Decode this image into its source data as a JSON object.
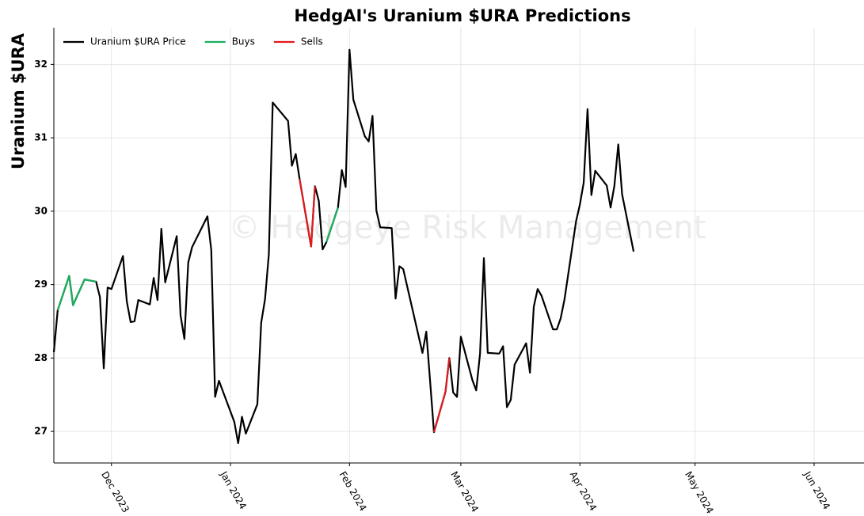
{
  "chart_data": {
    "type": "line",
    "title": "HedgAI's Uranium $URA Predictions",
    "ylabel": "Uranium $URA",
    "watermark": "© Hedgeye Risk Management",
    "legend": "upper left",
    "grid": true,
    "x": [
      -15,
      -14,
      -11,
      -10,
      -7,
      -4,
      -3,
      -2,
      -1,
      0,
      3,
      4,
      5,
      6,
      7,
      10,
      11,
      12,
      13,
      14,
      17,
      18,
      19,
      20,
      21,
      25,
      26,
      27,
      28,
      32,
      33,
      34,
      35,
      38,
      39,
      40,
      41,
      42,
      46,
      47,
      48,
      49,
      52,
      53,
      54,
      55,
      56,
      59,
      60,
      61,
      62,
      63,
      66,
      67,
      68,
      69,
      70,
      73,
      74,
      75,
      76,
      81,
      82,
      83,
      84,
      87,
      88,
      89,
      90,
      91,
      94,
      95,
      96,
      97,
      98,
      101,
      102,
      103,
      104,
      105,
      108,
      109,
      110,
      111,
      112,
      115,
      116,
      117,
      118,
      121,
      122,
      123,
      124,
      125,
      126,
      129,
      130,
      131,
      132,
      133,
      136
    ],
    "xlim": [
      -15,
      196
    ],
    "xticks": [
      {
        "value": 0,
        "label": "Dec 2023"
      },
      {
        "value": 31,
        "label": "Jan 2024"
      },
      {
        "value": 62,
        "label": "Feb 2024"
      },
      {
        "value": 91,
        "label": "Mar 2024"
      },
      {
        "value": 122,
        "label": "Apr 2024"
      },
      {
        "value": 152,
        "label": "May 2024"
      },
      {
        "value": 183,
        "label": "Jun 2024"
      }
    ],
    "ylim": [
      26.57,
      32.5
    ],
    "yticks": [
      27,
      28,
      29,
      30,
      31,
      32
    ],
    "series": [
      {
        "name": "Uranium $URA Price",
        "color": "#000000",
        "values": [
          28.08,
          28.65,
          29.12,
          28.72,
          29.07,
          29.04,
          28.83,
          27.86,
          28.96,
          28.94,
          29.39,
          28.77,
          28.49,
          28.5,
          28.79,
          28.73,
          29.09,
          28.79,
          29.76,
          29.03,
          29.66,
          28.58,
          28.26,
          29.3,
          29.51,
          29.93,
          29.47,
          27.47,
          27.69,
          27.13,
          26.84,
          27.2,
          26.97,
          27.37,
          28.48,
          28.8,
          29.42,
          31.48,
          31.23,
          30.62,
          30.78,
          30.44,
          29.52,
          30.34,
          30.14,
          29.48,
          29.58,
          30.05,
          30.56,
          30.33,
          32.2,
          31.52,
          31.02,
          30.95,
          31.3,
          30.01,
          29.78,
          29.77,
          28.81,
          29.25,
          29.21,
          28.07,
          28.36,
          27.68,
          26.99,
          27.54,
          28.0,
          27.53,
          27.47,
          28.29,
          27.7,
          27.56,
          28.06,
          29.36,
          28.07,
          28.06,
          28.16,
          27.33,
          27.43,
          27.91,
          28.2,
          27.8,
          28.7,
          28.94,
          28.85,
          28.39,
          28.39,
          28.54,
          28.8,
          29.86,
          30.09,
          30.39,
          31.39,
          30.22,
          30.55,
          30.35,
          30.05,
          30.35,
          30.91,
          30.23,
          29.45
        ]
      },
      {
        "name": "Buys",
        "color": "#1aaf5d",
        "values": [
          null,
          28.65,
          29.12,
          28.72,
          29.07,
          29.04,
          null,
          null,
          null,
          null,
          null,
          null,
          null,
          null,
          null,
          null,
          null,
          null,
          null,
          null,
          null,
          null,
          null,
          null,
          null,
          null,
          null,
          null,
          null,
          null,
          null,
          null,
          null,
          null,
          null,
          null,
          null,
          null,
          null,
          null,
          null,
          null,
          null,
          null,
          null,
          null,
          29.58,
          30.05,
          null,
          null,
          null,
          null,
          null,
          null,
          null,
          null,
          null,
          null,
          null,
          null,
          null,
          null,
          null,
          null,
          null,
          null,
          null,
          null,
          null,
          null,
          null,
          null,
          null,
          null,
          null,
          null,
          null,
          null,
          null,
          null,
          null,
          null,
          null,
          null,
          null,
          null,
          null,
          null,
          null,
          null,
          null,
          null,
          null,
          null,
          null,
          null,
          null,
          null,
          null,
          null,
          null
        ]
      },
      {
        "name": "Sells",
        "color": "#e3191c",
        "values": [
          null,
          null,
          null,
          null,
          null,
          null,
          null,
          null,
          null,
          null,
          null,
          null,
          null,
          null,
          null,
          null,
          null,
          null,
          null,
          null,
          null,
          null,
          null,
          null,
          null,
          null,
          null,
          null,
          null,
          null,
          null,
          null,
          null,
          null,
          null,
          null,
          null,
          null,
          null,
          null,
          null,
          30.44,
          29.52,
          30.34,
          null,
          null,
          null,
          null,
          null,
          null,
          null,
          null,
          null,
          null,
          null,
          null,
          null,
          null,
          null,
          null,
          null,
          null,
          null,
          null,
          26.99,
          27.54,
          28.0,
          null,
          null,
          null,
          null,
          null,
          null,
          null,
          null,
          null,
          null,
          null,
          null,
          null,
          null,
          null,
          null,
          null,
          null,
          null,
          null,
          null,
          null,
          null,
          null,
          null,
          null,
          null,
          null,
          null,
          null,
          null,
          null,
          null,
          null
        ]
      }
    ]
  }
}
